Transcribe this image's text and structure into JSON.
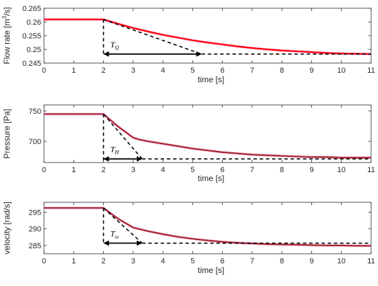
{
  "chart_data": [
    {
      "type": "line",
      "ylabel": "Flow rate [m^3/s]",
      "ylabel_base": "Flow rate [m",
      "ylabel_sup": "3",
      "ylabel_tail": "/s]",
      "xlabel": "time [s]",
      "xlim": [
        0,
        11
      ],
      "ylim": [
        0.245,
        0.265
      ],
      "xticks": [
        "0",
        "1",
        "2",
        "3",
        "4",
        "5",
        "6",
        "7",
        "8",
        "9",
        "10",
        "11"
      ],
      "yticks": [
        0.245,
        0.25,
        0.255,
        0.26,
        0.265
      ],
      "ytick_labels": [
        "0.245",
        "0.25",
        "0.255",
        "0.26",
        "0.265"
      ],
      "time_constant": {
        "symbol": "T",
        "sub": "Q"
      },
      "colors": {
        "measured": "#ff99ee",
        "response": "#ff0000",
        "guide": "#000000"
      },
      "series": [
        {
          "x": [
            0,
            2,
            2.5,
            3,
            3.5,
            4,
            4.5,
            5,
            5.5,
            6,
            6.5,
            7,
            7.5,
            8,
            8.5,
            9,
            9.5,
            10,
            10.5,
            11
          ],
          "values": [
            0.2609,
            0.2609,
            0.2593,
            0.2578,
            0.2565,
            0.2553,
            0.2543,
            0.2533,
            0.2525,
            0.2518,
            0.2511,
            0.2505,
            0.25,
            0.2496,
            0.2493,
            0.249,
            0.2487,
            0.2485,
            0.2484,
            0.2483
          ]
        }
      ],
      "guides": {
        "step_x": 2,
        "tangent_end_x": 5.3,
        "y_initial": 0.2609,
        "y_final": 0.2483
      }
    },
    {
      "type": "line",
      "ylabel": "Pressure [Pa]",
      "xlabel": "time [s]",
      "xlim": [
        0,
        11
      ],
      "ylim": [
        665,
        760
      ],
      "xticks": [
        "0",
        "1",
        "2",
        "3",
        "4",
        "5",
        "6",
        "7",
        "8",
        "9",
        "10",
        "11"
      ],
      "yticks": [
        700,
        750
      ],
      "ytick_labels": [
        "700",
        "750"
      ],
      "time_constant": {
        "symbol": "T",
        "sub": "H"
      },
      "colors": {
        "measured": "#ff99ee",
        "response": "#a52a2a",
        "guide": "#000000"
      },
      "series": [
        {
          "x": [
            0,
            2,
            2.5,
            3,
            3.2,
            3.5,
            4,
            4.5,
            5,
            5.5,
            6,
            6.5,
            7,
            7.5,
            8,
            8.5,
            9,
            9.5,
            10,
            10.5,
            11
          ],
          "values": [
            745,
            745,
            724,
            706,
            703,
            700,
            696,
            692,
            688,
            685,
            682,
            680,
            678,
            677,
            676,
            675,
            674,
            674,
            673,
            673,
            673
          ]
        }
      ],
      "guides": {
        "step_x": 2,
        "tangent_end_x": 3.3,
        "y_initial": 745,
        "y_final": 671
      }
    },
    {
      "type": "line",
      "ylabel": "velocity [rad/s]",
      "xlabel": "time [s]",
      "xlim": [
        0,
        11
      ],
      "ylim": [
        282.5,
        298
      ],
      "xticks": [
        "0",
        "1",
        "2",
        "3",
        "4",
        "5",
        "6",
        "7",
        "8",
        "9",
        "10",
        "11"
      ],
      "yticks": [
        285,
        290,
        295
      ],
      "ytick_labels": [
        "285",
        "290",
        "295"
      ],
      "time_constant": {
        "symbol": "T",
        "sub": "ω"
      },
      "colors": {
        "measured": "#ff99ee",
        "response": "#a52a2a",
        "guide": "#000000"
      },
      "series": [
        {
          "x": [
            0,
            2,
            2.5,
            3,
            3.5,
            4,
            4.5,
            5,
            5.5,
            6,
            6.5,
            7,
            7.5,
            8,
            8.5,
            9,
            9.5,
            10,
            10.5,
            11
          ],
          "values": [
            296.3,
            296.3,
            293.0,
            290.4,
            289.3,
            288.4,
            287.6,
            287.0,
            286.5,
            286.1,
            285.8,
            285.6,
            285.4,
            285.3,
            285.2,
            285.1,
            285.0,
            285.0,
            284.9,
            284.9
          ]
        }
      ],
      "guides": {
        "step_x": 2,
        "tangent_end_x": 3.3,
        "y_initial": 296.3,
        "y_final": 285.7
      }
    }
  ]
}
